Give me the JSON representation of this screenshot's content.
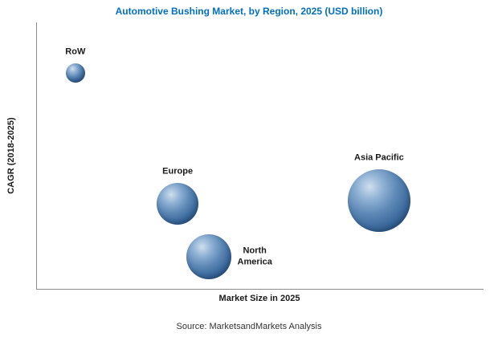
{
  "title": "Automotive Bushing Market, by Region, 2025 (USD billion)",
  "title_color": "#0070be",
  "source": "Source: MarketsandMarkets Analysis",
  "chart_data": {
    "type": "scatter",
    "variant": "bubble",
    "title": "Automotive Bushing Market, by Region, 2025 (USD billion)",
    "xlabel": "Market Size in 2025",
    "ylabel": "CAGR (2018-2025)",
    "grid": "off",
    "legend": "none",
    "axis_tick_labels": "none shown (relative positioning only)",
    "xlim": [
      0,
      100
    ],
    "ylim": [
      0,
      100
    ],
    "bubble_color": "#4a78ab",
    "points": [
      {
        "label": "RoW",
        "x": 8.6,
        "y": 81,
        "radius_px": 12,
        "label_position": "above"
      },
      {
        "label": "Europe",
        "x": 31.5,
        "y": 32,
        "radius_px": 26,
        "label_position": "above"
      },
      {
        "label": "North America",
        "x": 38.4,
        "y": 12,
        "radius_px": 28,
        "label_position": "right",
        "label_text": "North\nAmerica"
      },
      {
        "label": "Asia Pacific",
        "x": 76.6,
        "y": 33,
        "radius_px": 39,
        "label_position": "above"
      }
    ]
  }
}
